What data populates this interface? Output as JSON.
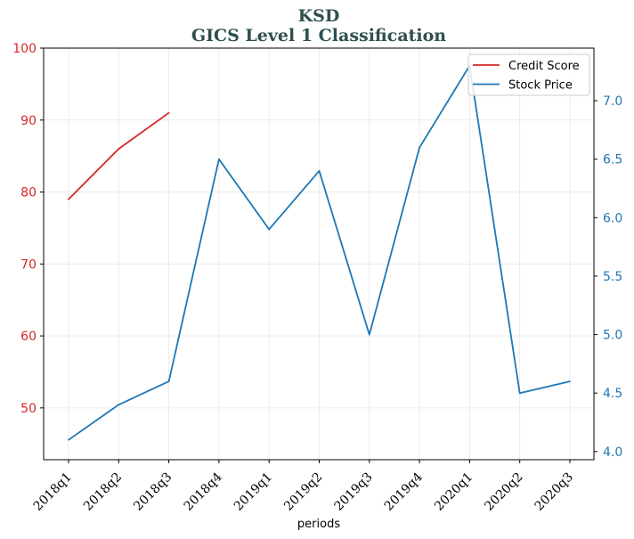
{
  "chart_data": {
    "type": "line",
    "title": "KSD",
    "subtitle": "GICS Level 1 Classification",
    "xlabel": "periods",
    "categories": [
      "2018q1",
      "2018q2",
      "2018q3",
      "2018q4",
      "2019q1",
      "2019q2",
      "2019q3",
      "2019q4",
      "2020q1",
      "2020q2",
      "2020q3"
    ],
    "series": [
      {
        "name": "Credit Score",
        "axis": "left",
        "color": "#d62728",
        "values": [
          79,
          86,
          91,
          null,
          null,
          null,
          null,
          null,
          null,
          null,
          null
        ]
      },
      {
        "name": "Stock Price",
        "axis": "right",
        "color": "#1f77b4",
        "values": [
          4.1,
          4.4,
          4.6,
          6.5,
          5.9,
          6.4,
          5.0,
          6.6,
          7.3,
          4.5,
          4.6
        ]
      }
    ],
    "y_left": {
      "ylim": [
        42.8,
        100
      ],
      "ticks": [
        50,
        60,
        70,
        80,
        90,
        100
      ],
      "color": "#d62728"
    },
    "y_right": {
      "ylim": [
        3.93,
        7.45
      ],
      "ticks": [
        4.0,
        4.5,
        5.0,
        5.5,
        6.0,
        6.5,
        7.0
      ],
      "color": "#1f77b4"
    },
    "grid": true,
    "legend": "top-right",
    "title_color": "#2f4f4f"
  }
}
